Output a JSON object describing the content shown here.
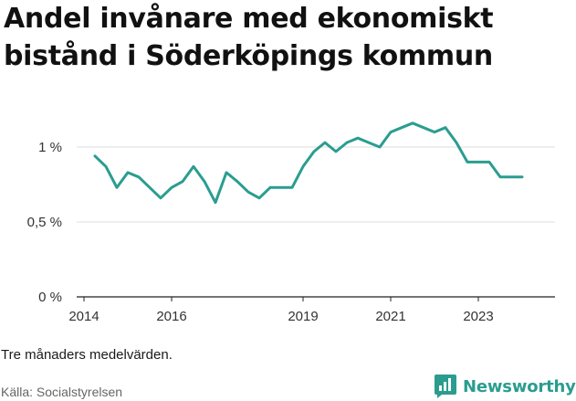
{
  "title": "Andel invånare med ekonomiskt bistånd i Söderköpings kommun",
  "note": "Tre månaders medelvärden.",
  "source": "Källa: Socialstyrelsen",
  "brand": {
    "name": "Newsworthy",
    "color": "#2a9d8f",
    "icon": "newsworthy-logo-icon"
  },
  "chart_data": {
    "type": "line",
    "title": "Andel invånare med ekonomiskt bistånd i Söderköpings kommun",
    "xlabel": "",
    "ylabel": "",
    "ylim": [
      0,
      1.25
    ],
    "xlim": [
      "2013-11",
      "2024-10"
    ],
    "y_ticks": [
      {
        "value": 0,
        "label": "0 %"
      },
      {
        "value": 0.5,
        "label": "0,5 %"
      },
      {
        "value": 1,
        "label": "1 %"
      }
    ],
    "x_ticks": [
      {
        "value": "2014-01",
        "label": "2014"
      },
      {
        "value": "2016-01",
        "label": "2016"
      },
      {
        "value": "2019-01",
        "label": "2019"
      },
      {
        "value": "2021-01",
        "label": "2021"
      },
      {
        "value": "2023-01",
        "label": "2023"
      }
    ],
    "grid": true,
    "line_color": "#2a9d8f",
    "series": [
      {
        "x": [
          "2014-04",
          "2014-07",
          "2014-10",
          "2015-01",
          "2015-04",
          "2015-07",
          "2015-10",
          "2016-01",
          "2016-04",
          "2016-07",
          "2016-10",
          "2017-01",
          "2017-04",
          "2017-07",
          "2017-10",
          "2018-01",
          "2018-04",
          "2018-07",
          "2018-10",
          "2019-01",
          "2019-04",
          "2019-07",
          "2019-10",
          "2020-01",
          "2020-04",
          "2020-07",
          "2020-10",
          "2021-01",
          "2021-04",
          "2021-07",
          "2021-10",
          "2022-01",
          "2022-04",
          "2022-07",
          "2022-10",
          "2023-01",
          "2023-04",
          "2023-07",
          "2023-10",
          "2024-01"
        ],
        "values": [
          0.94,
          0.87,
          0.73,
          0.83,
          0.8,
          0.73,
          0.66,
          0.73,
          0.77,
          0.87,
          0.77,
          0.63,
          0.83,
          0.77,
          0.7,
          0.66,
          0.73,
          0.73,
          0.73,
          0.87,
          0.97,
          1.03,
          0.97,
          1.03,
          1.06,
          1.03,
          1.0,
          1.1,
          1.13,
          1.16,
          1.13,
          1.1,
          1.13,
          1.03,
          0.9,
          0.9,
          0.9,
          0.8,
          0.8,
          0.8
        ]
      }
    ]
  }
}
